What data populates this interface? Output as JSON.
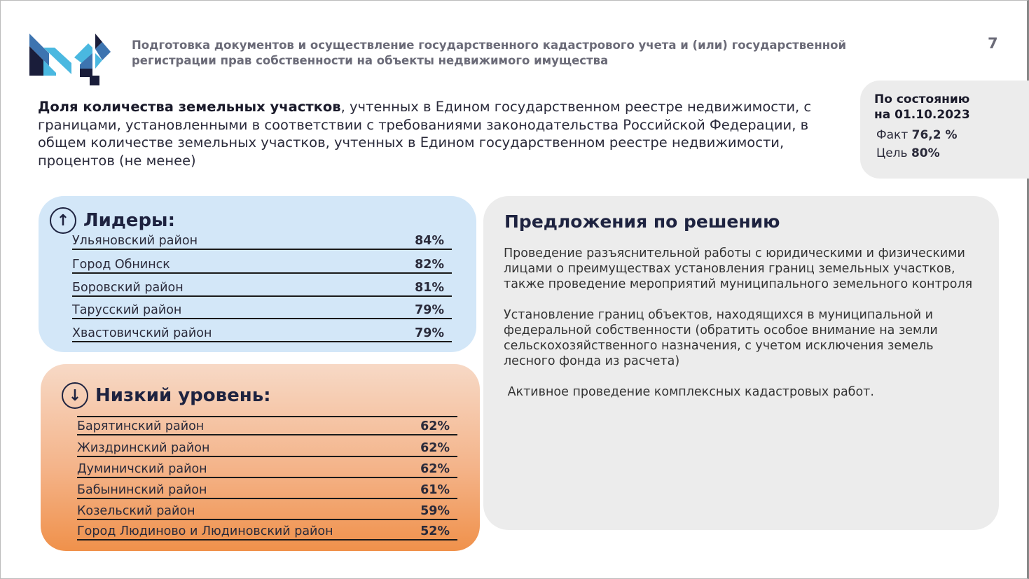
{
  "header": {
    "title": "Подготовка документов и осуществление государственного кадастрового учета и (или) государственной регистрации прав собственности на объекты недвижимого имущества",
    "page_number": "7"
  },
  "description": {
    "bold": "Доля количества земельных участков",
    "rest": ", учтенных в Едином государственном реестре недвижимости, с границами, установленными в соответствии с требованиями законодательства Российской Федерации, в общем количестве земельных участков, учтенных в Едином государственном реестре недвижимости, процентов (не менее)"
  },
  "status": {
    "title": "По состоянию на 01.10.2023",
    "fact_label": "Факт",
    "fact_value": "76,2 %",
    "goal_label": "Цель",
    "goal_value": "80%"
  },
  "leaders": {
    "title": "Лидеры:",
    "icon": "arrow-up-circle",
    "rows": [
      {
        "name": "Ульяновский район",
        "value": "84%"
      },
      {
        "name": "Город Обнинск",
        "value": "82%"
      },
      {
        "name": "Боровский район",
        "value": "81%"
      },
      {
        "name": "Тарусский район",
        "value": "79%"
      },
      {
        "name": "Хвастовичский район",
        "value": "79%"
      }
    ]
  },
  "low": {
    "title": "Низкий уровень:",
    "icon": "arrow-down-circle",
    "rows": [
      {
        "name": "Барятинский район",
        "value": "62%"
      },
      {
        "name": "Жиздринский район",
        "value": "62%"
      },
      {
        "name": "Думиничский район",
        "value": "62%"
      },
      {
        "name": "Бабынинский район",
        "value": "61%"
      },
      {
        "name": "Козельский район",
        "value": "59%"
      },
      {
        "name": "Город Людиново и Людиновский район",
        "value": "52%"
      }
    ]
  },
  "proposals": {
    "title": "Предложения по решению",
    "items": [
      "Проведение разъяснительной работы с юридическими и физическими лицами о преимуществах установления границ земельных участков, также проведение мероприятий муниципального земельного контроля",
      " Установление границ  объектов, находящихся в муниципальной и федеральной собственности (обратить особое внимание на земли сельскохозяйственного назначения, с учетом исключения земель лесного фонда из расчета)",
      " Активное проведение комплексных кадастровых работ."
    ]
  }
}
